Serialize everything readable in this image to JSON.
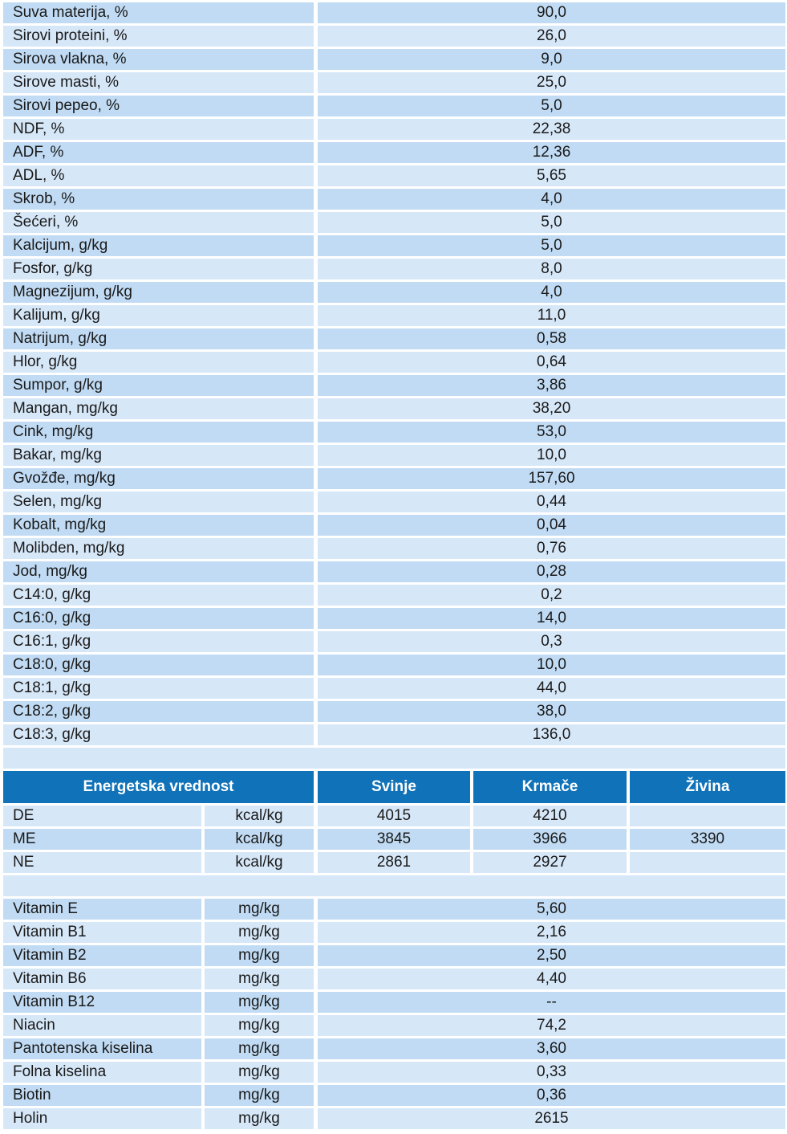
{
  "composition": [
    {
      "label": "Suva materija, %",
      "value": "90,0"
    },
    {
      "label": "Sirovi proteini, %",
      "value": "26,0"
    },
    {
      "label": "Sirova vlakna, %",
      "value": "9,0"
    },
    {
      "label": "Sirove masti, %",
      "value": "25,0"
    },
    {
      "label": "Sirovi pepeo, %",
      "value": "5,0"
    },
    {
      "label": "NDF, %",
      "value": "22,38"
    },
    {
      "label": "ADF, %",
      "value": "12,36"
    },
    {
      "label": "ADL, %",
      "value": "5,65"
    },
    {
      "label": "Skrob, %",
      "value": "4,0"
    },
    {
      "label": "Šećeri, %",
      "value": "5,0"
    },
    {
      "label": "Kalcijum, g/kg",
      "value": "5,0"
    },
    {
      "label": "Fosfor, g/kg",
      "value": "8,0"
    },
    {
      "label": "Magnezijum, g/kg",
      "value": "4,0"
    },
    {
      "label": "Kalijum, g/kg",
      "value": "11,0"
    },
    {
      "label": "Natrijum, g/kg",
      "value": "0,58"
    },
    {
      "label": "Hlor, g/kg",
      "value": "0,64"
    },
    {
      "label": "Sumpor, g/kg",
      "value": "3,86"
    },
    {
      "label": "Mangan, mg/kg",
      "value": "38,20"
    },
    {
      "label": "Cink, mg/kg",
      "value": "53,0"
    },
    {
      "label": "Bakar, mg/kg",
      "value": "10,0"
    },
    {
      "label": "Gvožđe, mg/kg",
      "value": "157,60"
    },
    {
      "label": "Selen, mg/kg",
      "value": "0,44"
    },
    {
      "label": "Kobalt, mg/kg",
      "value": "0,04"
    },
    {
      "label": "Molibden, mg/kg",
      "value": "0,76"
    },
    {
      "label": "Jod, mg/kg",
      "value": "0,28"
    },
    {
      "label": "C14:0, g/kg",
      "value": "0,2"
    },
    {
      "label": "C16:0, g/kg",
      "value": "14,0"
    },
    {
      "label": "C16:1, g/kg",
      "value": "0,3"
    },
    {
      "label": "C18:0, g/kg",
      "value": "10,0"
    },
    {
      "label": "C18:1, g/kg",
      "value": "44,0"
    },
    {
      "label": "C18:2, g/kg",
      "value": "38,0"
    },
    {
      "label": "C18:3, g/kg",
      "value": "136,0"
    }
  ],
  "energy": {
    "headers": {
      "title": "Energetska vrednost",
      "svinje": "Svinje",
      "krmace": "Krmače",
      "zivina": "Živina"
    },
    "rows": [
      {
        "label": "DE",
        "unit": "kcal/kg",
        "svinje": "4015",
        "krmace": "4210",
        "zivina": ""
      },
      {
        "label": "ME",
        "unit": "kcal/kg",
        "svinje": "3845",
        "krmace": "3966",
        "zivina": "3390"
      },
      {
        "label": "NE",
        "unit": "kcal/kg",
        "svinje": "2861",
        "krmace": "2927",
        "zivina": ""
      }
    ]
  },
  "vitamins": [
    {
      "label": "Vitamin E",
      "unit": "mg/kg",
      "value": "5,60"
    },
    {
      "label": "Vitamin B1",
      "unit": "mg/kg",
      "value": "2,16"
    },
    {
      "label": "Vitamin B2",
      "unit": "mg/kg",
      "value": "2,50"
    },
    {
      "label": "Vitamin B6",
      "unit": "mg/kg",
      "value": "4,40"
    },
    {
      "label": "Vitamin B12",
      "unit": "mg/kg",
      "value": "--"
    },
    {
      "label": "Niacin",
      "unit": "mg/kg",
      "value": "74,2"
    },
    {
      "label": "Pantotenska kiselina",
      "unit": "mg/kg",
      "value": "3,60"
    },
    {
      "label": "Folna kiselina",
      "unit": "mg/kg",
      "value": "0,33"
    },
    {
      "label": "Biotin",
      "unit": "mg/kg",
      "value": "0,36"
    },
    {
      "label": "Holin",
      "unit": "mg/kg",
      "value": "2615"
    }
  ],
  "colors": {
    "row_dark": "#c0dbf3",
    "row_light": "#d6e7f8",
    "header": "#1072b8"
  }
}
